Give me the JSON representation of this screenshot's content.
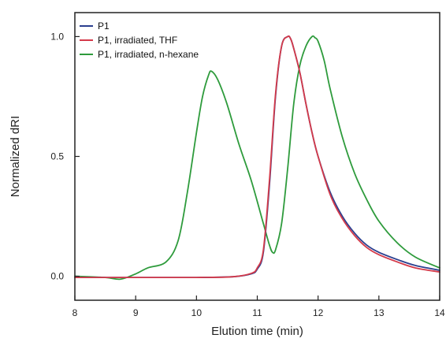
{
  "chart_data": {
    "type": "line",
    "title": "",
    "xlabel": "Elution time (min)",
    "ylabel": "Normalized dRI",
    "xlim": [
      8,
      14
    ],
    "ylim": [
      -0.1,
      1.1
    ],
    "xticks": [
      8,
      9,
      10,
      11,
      12,
      13,
      14
    ],
    "xtick_labels": [
      "8",
      "9",
      "10",
      "11",
      "12",
      "13",
      "14"
    ],
    "yticks": [
      0.0,
      0.5,
      1.0
    ],
    "ytick_labels": [
      "0.0",
      "0.5",
      "1.0"
    ],
    "grid": false,
    "legend_position": "top-left",
    "series": [
      {
        "name": "P1",
        "color": "#2b3f8f",
        "x": [
          8.0,
          9.0,
          10.0,
          10.6,
          10.9,
          11.0,
          11.1,
          11.2,
          11.3,
          11.4,
          11.5,
          11.55,
          11.6,
          11.7,
          11.8,
          11.9,
          12.0,
          12.2,
          12.4,
          12.6,
          12.8,
          13.0,
          13.3,
          13.6,
          14.0
        ],
        "y": [
          -0.005,
          -0.005,
          -0.005,
          -0.002,
          0.01,
          0.03,
          0.1,
          0.38,
          0.75,
          0.96,
          1.0,
          0.99,
          0.95,
          0.85,
          0.72,
          0.6,
          0.5,
          0.35,
          0.25,
          0.18,
          0.13,
          0.1,
          0.07,
          0.045,
          0.025
        ]
      },
      {
        "name": "P1, irradiated, THF",
        "color": "#d43a4a",
        "x": [
          8.0,
          9.0,
          10.0,
          10.6,
          10.9,
          11.0,
          11.1,
          11.2,
          11.3,
          11.4,
          11.5,
          11.55,
          11.6,
          11.7,
          11.8,
          11.9,
          12.0,
          12.2,
          12.4,
          12.6,
          12.8,
          13.0,
          13.3,
          13.6,
          14.0
        ],
        "y": [
          -0.005,
          -0.005,
          -0.005,
          -0.002,
          0.012,
          0.035,
          0.11,
          0.4,
          0.76,
          0.96,
          1.0,
          0.99,
          0.95,
          0.85,
          0.72,
          0.6,
          0.5,
          0.34,
          0.24,
          0.17,
          0.12,
          0.09,
          0.06,
          0.035,
          0.018
        ]
      },
      {
        "name": "P1, irradiated, n-hexane",
        "color": "#2e9b3c",
        "x": [
          8.0,
          8.5,
          8.75,
          9.0,
          9.2,
          9.5,
          9.7,
          9.85,
          10.0,
          10.1,
          10.2,
          10.25,
          10.35,
          10.5,
          10.7,
          10.9,
          11.1,
          11.2,
          11.25,
          11.3,
          11.4,
          11.5,
          11.6,
          11.7,
          11.8,
          11.9,
          11.95,
          12.0,
          12.1,
          12.2,
          12.4,
          12.6,
          12.8,
          13.0,
          13.3,
          13.6,
          14.0
        ],
        "y": [
          0.0,
          -0.005,
          -0.012,
          0.01,
          0.035,
          0.06,
          0.15,
          0.35,
          0.6,
          0.75,
          0.84,
          0.855,
          0.82,
          0.72,
          0.55,
          0.4,
          0.22,
          0.13,
          0.1,
          0.11,
          0.22,
          0.45,
          0.72,
          0.88,
          0.96,
          1.0,
          0.995,
          0.98,
          0.9,
          0.78,
          0.58,
          0.43,
          0.32,
          0.23,
          0.14,
          0.08,
          0.035
        ]
      }
    ]
  }
}
